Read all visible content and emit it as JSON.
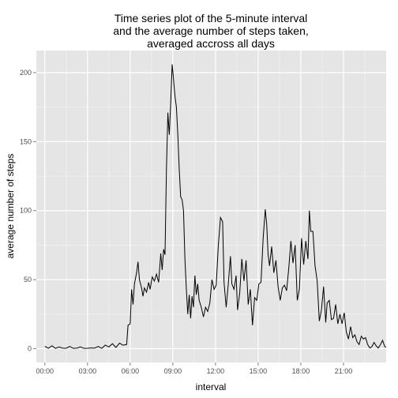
{
  "chart_data": {
    "type": "line",
    "title": [
      "Time series plot of the 5-minute interval",
      "and the average number of steps taken,",
      "averaged accross all days"
    ],
    "xlabel": "interval",
    "ylabel": "average number of steps",
    "xlim": [
      -0.6,
      24.0
    ],
    "ylim": [
      -10,
      216
    ],
    "x_unit": "hours",
    "x_ticks": [
      {
        "value": 0,
        "label": "00:00"
      },
      {
        "value": 3,
        "label": "03:00"
      },
      {
        "value": 6,
        "label": "06:00"
      },
      {
        "value": 9,
        "label": "09:00"
      },
      {
        "value": 12,
        "label": "12:00"
      },
      {
        "value": 15,
        "label": "15:00"
      },
      {
        "value": 18,
        "label": "18:00"
      },
      {
        "value": 21,
        "label": "21:00"
      }
    ],
    "y_ticks": [
      0,
      50,
      100,
      150,
      200
    ],
    "colors": {
      "panel": "#e5e5e5",
      "grid": "#ffffff",
      "line": "#000000"
    },
    "series": [
      {
        "color": "#000000",
        "points": [
          [
            0.0,
            1.7
          ],
          [
            0.25,
            0.3
          ],
          [
            0.5,
            2.1
          ],
          [
            0.75,
            0.2
          ],
          [
            1.0,
            1.2
          ],
          [
            1.25,
            0.4
          ],
          [
            1.5,
            0.3
          ],
          [
            1.75,
            1.6
          ],
          [
            2.0,
            0.2
          ],
          [
            2.25,
            0.4
          ],
          [
            2.5,
            1.3
          ],
          [
            2.75,
            0.2
          ],
          [
            3.0,
            0.3
          ],
          [
            3.25,
            0.5
          ],
          [
            3.5,
            0.4
          ],
          [
            3.75,
            1.6
          ],
          [
            4.0,
            0.2
          ],
          [
            4.25,
            2.6
          ],
          [
            4.5,
            1.2
          ],
          [
            4.75,
            3.6
          ],
          [
            5.0,
            0.9
          ],
          [
            5.25,
            4.0
          ],
          [
            5.5,
            2.5
          ],
          [
            5.75,
            3.0
          ],
          [
            5.85,
            17.0
          ],
          [
            6.0,
            18.0
          ],
          [
            6.1,
            43.0
          ],
          [
            6.2,
            32.0
          ],
          [
            6.3,
            47.0
          ],
          [
            6.45,
            55.0
          ],
          [
            6.55,
            63.0
          ],
          [
            6.65,
            50.0
          ],
          [
            6.8,
            44.0
          ],
          [
            6.9,
            38.0
          ],
          [
            7.0,
            44.0
          ],
          [
            7.15,
            41.0
          ],
          [
            7.3,
            48.0
          ],
          [
            7.4,
            43.0
          ],
          [
            7.55,
            52.0
          ],
          [
            7.7,
            49.0
          ],
          [
            7.85,
            54.0
          ],
          [
            8.0,
            48.0
          ],
          [
            8.15,
            69.0
          ],
          [
            8.25,
            57.0
          ],
          [
            8.35,
            72.0
          ],
          [
            8.45,
            68.0
          ],
          [
            8.55,
            130.0
          ],
          [
            8.65,
            171.0
          ],
          [
            8.75,
            155.0
          ],
          [
            8.85,
            178.0
          ],
          [
            8.95,
            206.0
          ],
          [
            9.05,
            195.0
          ],
          [
            9.15,
            183.0
          ],
          [
            9.25,
            175.0
          ],
          [
            9.35,
            155.0
          ],
          [
            9.45,
            130.0
          ],
          [
            9.55,
            110.0
          ],
          [
            9.65,
            108.0
          ],
          [
            9.75,
            100.0
          ],
          [
            9.85,
            65.0
          ],
          [
            9.95,
            43.0
          ],
          [
            10.05,
            25.0
          ],
          [
            10.15,
            39.0
          ],
          [
            10.25,
            22.0
          ],
          [
            10.35,
            38.0
          ],
          [
            10.45,
            30.0
          ],
          [
            10.55,
            53.0
          ],
          [
            10.65,
            39.0
          ],
          [
            10.75,
            47.0
          ],
          [
            10.85,
            35.0
          ],
          [
            11.0,
            30.0
          ],
          [
            11.15,
            23.0
          ],
          [
            11.3,
            30.0
          ],
          [
            11.45,
            27.0
          ],
          [
            11.6,
            33.0
          ],
          [
            11.75,
            50.0
          ],
          [
            11.9,
            43.0
          ],
          [
            12.05,
            46.0
          ],
          [
            12.2,
            75.0
          ],
          [
            12.35,
            95.0
          ],
          [
            12.5,
            92.0
          ],
          [
            12.6,
            48.0
          ],
          [
            12.75,
            30.0
          ],
          [
            12.9,
            47.0
          ],
          [
            13.05,
            67.0
          ],
          [
            13.15,
            47.0
          ],
          [
            13.3,
            43.0
          ],
          [
            13.45,
            53.0
          ],
          [
            13.55,
            28.0
          ],
          [
            13.7,
            40.0
          ],
          [
            13.85,
            65.0
          ],
          [
            14.0,
            49.0
          ],
          [
            14.15,
            64.0
          ],
          [
            14.3,
            32.0
          ],
          [
            14.45,
            43.0
          ],
          [
            14.6,
            17.0
          ],
          [
            14.75,
            37.0
          ],
          [
            14.9,
            35.0
          ],
          [
            15.05,
            47.0
          ],
          [
            15.2,
            48.0
          ],
          [
            15.35,
            80.0
          ],
          [
            15.5,
            101.0
          ],
          [
            15.6,
            90.0
          ],
          [
            15.7,
            68.0
          ],
          [
            15.8,
            60.0
          ],
          [
            15.95,
            74.0
          ],
          [
            16.1,
            55.0
          ],
          [
            16.25,
            64.0
          ],
          [
            16.4,
            45.0
          ],
          [
            16.55,
            35.0
          ],
          [
            16.7,
            44.0
          ],
          [
            16.85,
            46.0
          ],
          [
            17.0,
            42.0
          ],
          [
            17.15,
            58.0
          ],
          [
            17.3,
            78.0
          ],
          [
            17.45,
            62.0
          ],
          [
            17.6,
            75.0
          ],
          [
            17.75,
            35.0
          ],
          [
            17.9,
            43.0
          ],
          [
            18.05,
            80.0
          ],
          [
            18.2,
            61.0
          ],
          [
            18.35,
            78.0
          ],
          [
            18.5,
            65.0
          ],
          [
            18.6,
            100.0
          ],
          [
            18.7,
            85.0
          ],
          [
            18.85,
            85.0
          ],
          [
            19.0,
            60.0
          ],
          [
            19.15,
            49.0
          ],
          [
            19.3,
            20.0
          ],
          [
            19.45,
            28.0
          ],
          [
            19.6,
            45.0
          ],
          [
            19.75,
            19.0
          ],
          [
            19.85,
            33.0
          ],
          [
            20.0,
            35.0
          ],
          [
            20.15,
            21.0
          ],
          [
            20.3,
            22.0
          ],
          [
            20.45,
            32.0
          ],
          [
            20.6,
            18.0
          ],
          [
            20.75,
            25.0
          ],
          [
            20.9,
            18.0
          ],
          [
            21.05,
            26.0
          ],
          [
            21.2,
            12.0
          ],
          [
            21.35,
            7.0
          ],
          [
            21.5,
            16.0
          ],
          [
            21.65,
            8.0
          ],
          [
            21.8,
            10.0
          ],
          [
            21.95,
            5.0
          ],
          [
            22.1,
            3.0
          ],
          [
            22.25,
            9.0
          ],
          [
            22.4,
            7.0
          ],
          [
            22.55,
            8.0
          ],
          [
            22.7,
            3.0
          ],
          [
            22.85,
            0.5
          ],
          [
            23.0,
            1.5
          ],
          [
            23.15,
            4.5
          ],
          [
            23.3,
            2.0
          ],
          [
            23.45,
            0.5
          ],
          [
            23.6,
            3.0
          ],
          [
            23.75,
            6.0
          ],
          [
            23.9,
            1.5
          ],
          [
            23.99,
            1.0
          ]
        ]
      }
    ]
  }
}
